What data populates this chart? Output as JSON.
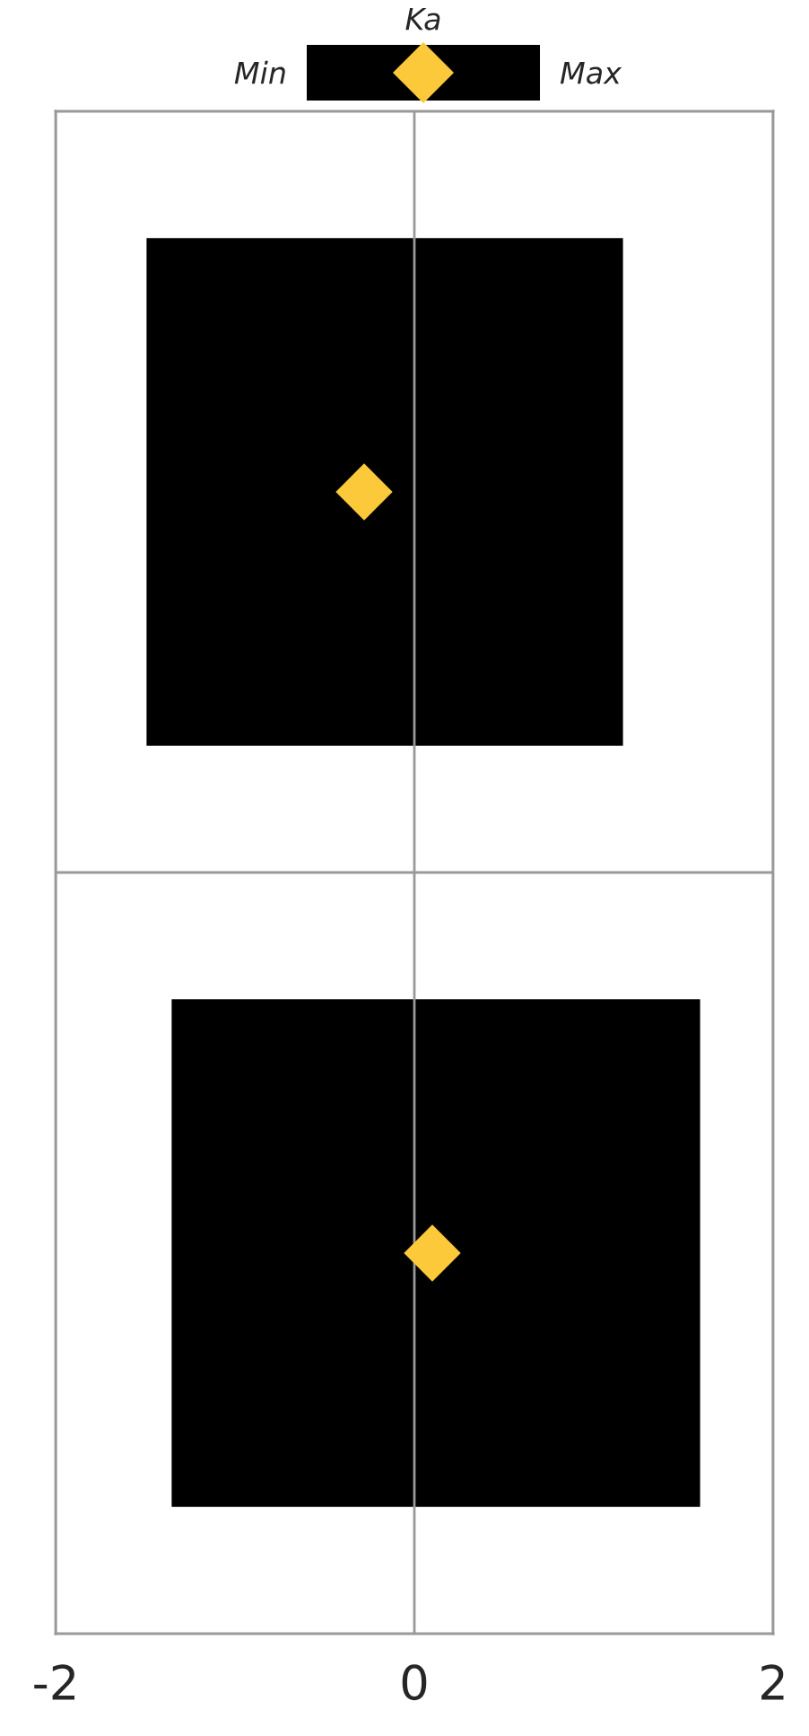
{
  "chart_data": {
    "type": "bar",
    "orientation": "horizontal",
    "categories": [
      null,
      null
    ],
    "series": [
      {
        "color": "#000000",
        "base": [
          -1.5,
          -1.36
        ],
        "values": [
          2.67,
          2.96
        ]
      },
      {
        "type": "scatter",
        "name": "Ka",
        "color": "#fcc93a",
        "marker": "diamond",
        "values": [
          -0.28,
          0.1
        ]
      }
    ],
    "xlim": [
      -2,
      2
    ],
    "xticks": [
      -2,
      0,
      2
    ],
    "grid": "x",
    "tick_labels": "x",
    "legend": "top",
    "annotations": [
      "Min",
      "Max"
    ]
  }
}
